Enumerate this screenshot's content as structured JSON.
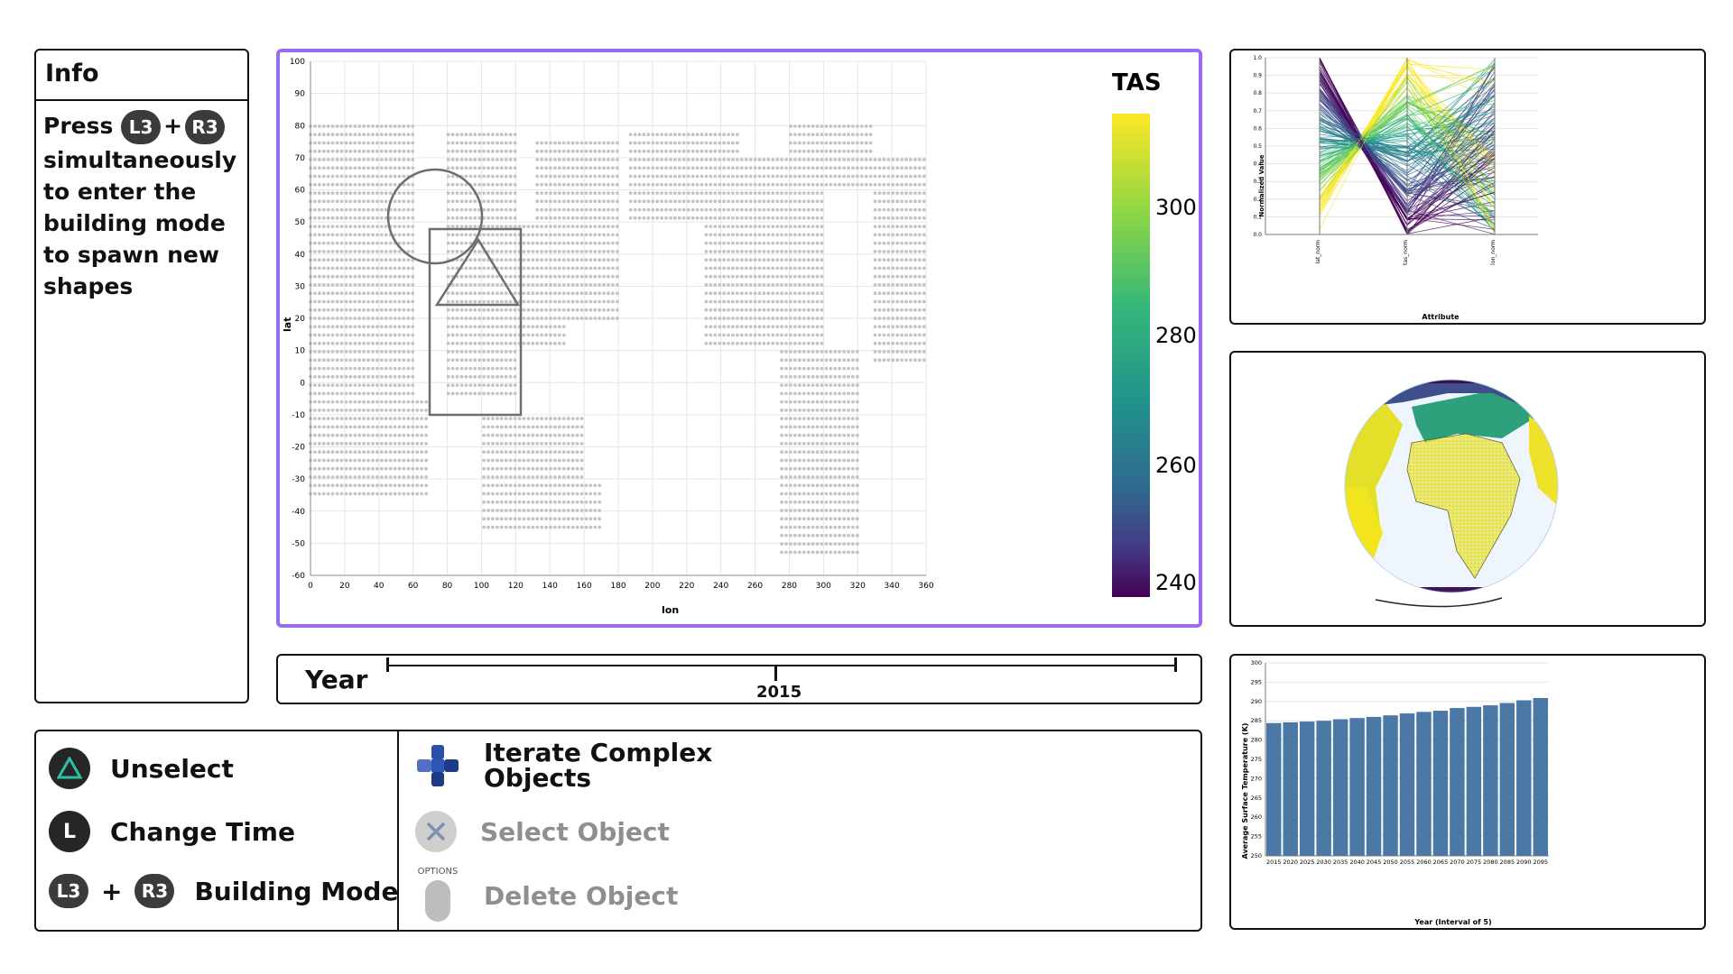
{
  "info": {
    "title": "Info",
    "press": "Press",
    "btn_l3": "L3",
    "plus": "+",
    "btn_r3": "R3",
    "lines": [
      "simultaneously",
      "to enter the",
      "building mode",
      "to spawn new",
      "shapes"
    ]
  },
  "map": {
    "legend_title": "TAS",
    "legend_ticks": [
      "300",
      "280",
      "260",
      "240"
    ],
    "xlabel": "lon",
    "ylabel": "lat",
    "x_ticks": [
      "0",
      "20",
      "40",
      "60",
      "80",
      "100",
      "120",
      "140",
      "160",
      "180",
      "200",
      "220",
      "240",
      "260",
      "280",
      "300",
      "320",
      "340",
      "360"
    ],
    "y_ticks": [
      "100",
      "90",
      "80",
      "70",
      "60",
      "50",
      "40",
      "30",
      "20",
      "10",
      "0",
      "-10",
      "-20",
      "-30",
      "-40",
      "-50",
      "-60"
    ],
    "colors": {
      "point": "#c4c4c4",
      "highlight": "#9b6bf2",
      "shape": "#6e6e6e"
    },
    "shapes": [
      "circle",
      "triangle",
      "rectangle"
    ]
  },
  "year": {
    "label": "Year",
    "value": "2015"
  },
  "controls": {
    "left": [
      {
        "icon": "triangle-button-icon",
        "label": "Unselect"
      },
      {
        "icon": "l-stick-icon",
        "glyph": "L",
        "label": "Change Time"
      },
      {
        "icon": "l3-r3-icon",
        "label": "Building Mode"
      }
    ],
    "right": [
      {
        "icon": "dpad-icon",
        "label_1": "Iterate Complex",
        "label_2": "Objects"
      },
      {
        "icon": "cross-button-icon",
        "label": "Select Object"
      },
      {
        "icon": "options-button-icon",
        "options_caption": "OPTIONS",
        "label": "Delete Object"
      }
    ]
  },
  "parallel_coords": {
    "ylabel": "Normalized Value",
    "xlabel": "Attribute",
    "axes": [
      "lat_norm",
      "tas_norm",
      "lon_norm"
    ],
    "y_ticks": [
      "1.0",
      "0.9",
      "0.8",
      "0.7",
      "0.6",
      "0.5",
      "0.4",
      "0.3",
      "0.2",
      "0.1",
      "0.0"
    ]
  },
  "chart_data": {
    "type": "bar",
    "categories": [
      "2015",
      "2020",
      "2025",
      "2030",
      "2035",
      "2040",
      "2045",
      "2050",
      "2055",
      "2060",
      "2065",
      "2070",
      "2075",
      "2080",
      "2085",
      "2090",
      "2095"
    ],
    "values": [
      284.4,
      284.6,
      284.8,
      285.0,
      285.4,
      285.7,
      286.0,
      286.4,
      286.9,
      287.3,
      287.6,
      288.3,
      288.6,
      289.0,
      289.6,
      290.3,
      290.9
    ],
    "xlabel": "Year (Interval of 5)",
    "ylabel": "Average Surface Temperature (K)",
    "ylim": [
      250,
      300
    ],
    "y_ticks": [
      250,
      255,
      260,
      265,
      270,
      275,
      280,
      285,
      290,
      295,
      300
    ],
    "color": "#4c78a8",
    "grid": true
  }
}
